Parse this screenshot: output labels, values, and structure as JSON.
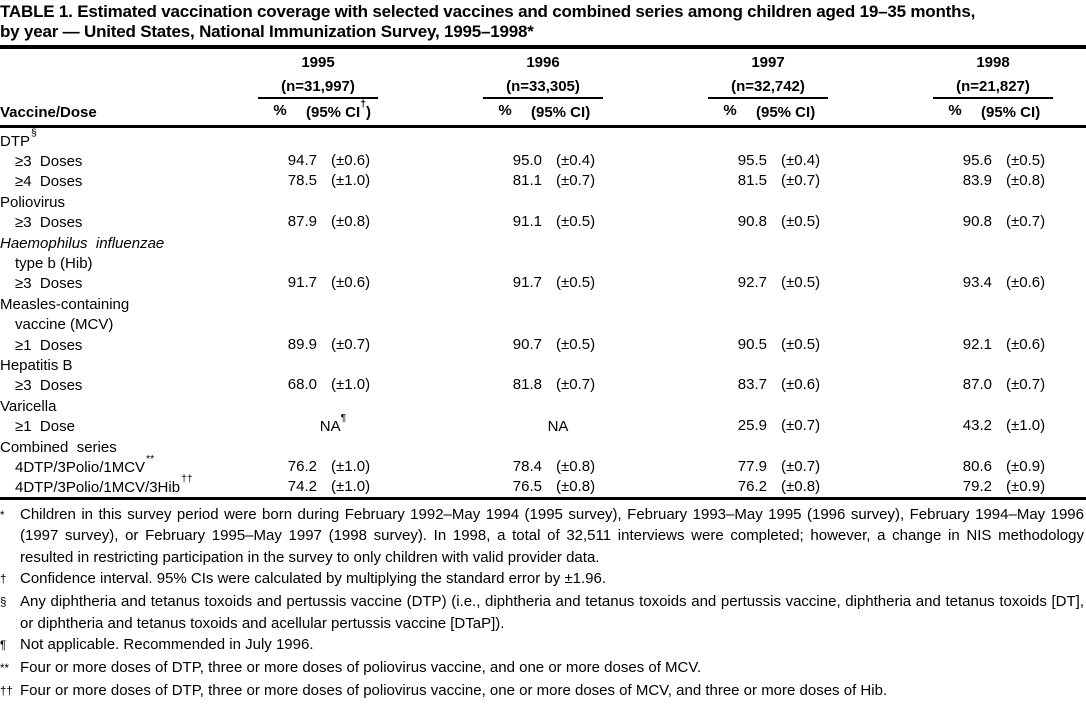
{
  "title": {
    "line1": "TABLE 1. Estimated vaccination coverage with selected vaccines and combined series among children aged 19–35 months,",
    "line2": "by year — United States, National Immunization Survey, 1995–1998*"
  },
  "table": {
    "row_header": "Vaccine/Dose",
    "year_groups": [
      {
        "year": "1995",
        "n": "(n=31,997)",
        "pct_label": "%",
        "ci_pre": "(95% CI",
        "ci_sup": "†",
        "ci_post": ")"
      },
      {
        "year": "1996",
        "n": "(n=33,305)",
        "pct_label": "%",
        "ci_pre": "(95% CI",
        "ci_sup": "",
        "ci_post": ")"
      },
      {
        "year": "1997",
        "n": "(n=32,742)",
        "pct_label": "%",
        "ci_pre": "(95% CI",
        "ci_sup": "",
        "ci_post": ")"
      },
      {
        "year": "1998",
        "n": "(n=21,827)",
        "pct_label": "%",
        "ci_pre": "(95% CI",
        "ci_sup": "",
        "ci_post": ")"
      }
    ],
    "rows": [
      {
        "label": "DTP",
        "sup": "§",
        "indent": 0,
        "italic": false,
        "cells": null
      },
      {
        "label": "≥3  Doses",
        "sup": "",
        "indent": 1,
        "italic": false,
        "cells": [
          {
            "pct": "94.7",
            "ci": "(±0.6)"
          },
          {
            "pct": "95.0",
            "ci": "(±0.4)"
          },
          {
            "pct": "95.5",
            "ci": "(±0.4)"
          },
          {
            "pct": "95.6",
            "ci": "(±0.5)"
          }
        ]
      },
      {
        "label": "≥4  Doses",
        "sup": "",
        "indent": 1,
        "italic": false,
        "cells": [
          {
            "pct": "78.5",
            "ci": "(±1.0)"
          },
          {
            "pct": "81.1",
            "ci": "(±0.7)"
          },
          {
            "pct": "81.5",
            "ci": "(±0.7)"
          },
          {
            "pct": "83.9",
            "ci": "(±0.8)"
          }
        ]
      },
      {
        "label": "Poliovirus",
        "sup": "",
        "indent": 0,
        "italic": false,
        "cells": null
      },
      {
        "label": "≥3  Doses",
        "sup": "",
        "indent": 1,
        "italic": false,
        "cells": [
          {
            "pct": "87.9",
            "ci": "(±0.8)"
          },
          {
            "pct": "91.1",
            "ci": "(±0.5)"
          },
          {
            "pct": "90.8",
            "ci": "(±0.5)"
          },
          {
            "pct": "90.8",
            "ci": "(±0.7)"
          }
        ]
      },
      {
        "label": "Haemophilus  influenzae",
        "sup": "",
        "indent": 0,
        "italic": true,
        "cells": null
      },
      {
        "label": "type b (Hib)",
        "sup": "",
        "indent": 1,
        "italic": false,
        "cells": null
      },
      {
        "label": "≥3  Doses",
        "sup": "",
        "indent": 1,
        "italic": false,
        "cells": [
          {
            "pct": "91.7",
            "ci": "(±0.6)"
          },
          {
            "pct": "91.7",
            "ci": "(±0.5)"
          },
          {
            "pct": "92.7",
            "ci": "(±0.5)"
          },
          {
            "pct": "93.4",
            "ci": "(±0.6)"
          }
        ]
      },
      {
        "label": "Measles-containing",
        "sup": "",
        "indent": 0,
        "italic": false,
        "cells": null
      },
      {
        "label": "vaccine (MCV)",
        "sup": "",
        "indent": 1,
        "italic": false,
        "cells": null
      },
      {
        "label": "≥1  Doses",
        "sup": "",
        "indent": 1,
        "italic": false,
        "cells": [
          {
            "pct": "89.9",
            "ci": "(±0.7)"
          },
          {
            "pct": "90.7",
            "ci": "(±0.5)"
          },
          {
            "pct": "90.5",
            "ci": "(±0.5)"
          },
          {
            "pct": "92.1",
            "ci": "(±0.6)"
          }
        ]
      },
      {
        "label": "Hepatitis B",
        "sup": "",
        "indent": 0,
        "italic": false,
        "cells": null
      },
      {
        "label": "≥3  Doses",
        "sup": "",
        "indent": 1,
        "italic": false,
        "cells": [
          {
            "pct": "68.0",
            "ci": "(±1.0)"
          },
          {
            "pct": "81.8",
            "ci": "(±0.7)"
          },
          {
            "pct": "83.7",
            "ci": "(±0.6)"
          },
          {
            "pct": "87.0",
            "ci": "(±0.7)"
          }
        ]
      },
      {
        "label": "Varicella",
        "sup": "",
        "indent": 0,
        "italic": false,
        "cells": null
      },
      {
        "label": "≥1  Dose",
        "sup": "",
        "indent": 1,
        "italic": false,
        "cells": [
          {
            "na": "NA",
            "sup": "¶"
          },
          {
            "na": "NA",
            "sup": ""
          },
          {
            "pct": "25.9",
            "ci": "(±0.7)"
          },
          {
            "pct": "43.2",
            "ci": "(±1.0)"
          }
        ]
      },
      {
        "label": "Combined  series",
        "sup": "",
        "indent": 0,
        "italic": false,
        "cells": null
      },
      {
        "label": "4DTP/3Polio/1MCV",
        "sup": "**",
        "indent": 1,
        "italic": false,
        "cells": [
          {
            "pct": "76.2",
            "ci": "(±1.0)"
          },
          {
            "pct": "78.4",
            "ci": "(±0.8)"
          },
          {
            "pct": "77.9",
            "ci": "(±0.7)"
          },
          {
            "pct": "80.6",
            "ci": "(±0.9)"
          }
        ]
      },
      {
        "label": "4DTP/3Polio/1MCV/3Hib",
        "sup": "††",
        "indent": 1,
        "italic": false,
        "cells": [
          {
            "pct": "74.2",
            "ci": "(±1.0)"
          },
          {
            "pct": "76.5",
            "ci": "(±0.8)"
          },
          {
            "pct": "76.2",
            "ci": "(±0.8)"
          },
          {
            "pct": "79.2",
            "ci": "(±0.9)"
          }
        ]
      }
    ]
  },
  "footnotes": [
    {
      "marker": "*",
      "text": "Children in this survey period were born during February 1992–May 1994 (1995 survey), February 1993–May 1995 (1996 survey), February 1994–May 1996 (1997 survey), or February 1995–May 1997 (1998 survey). In 1998, a total of 32,511 interviews were completed; however, a change in NIS methodology resulted in restricting participation in the survey to only children with valid provider data."
    },
    {
      "marker": "†",
      "text": "Confidence interval. 95% CIs were calculated by multiplying the standard error by ±1.96."
    },
    {
      "marker": "§",
      "text": "Any diphtheria and tetanus toxoids and pertussis vaccine (DTP) (i.e., diphtheria and tetanus toxoids and pertussis vaccine, diphtheria and tetanus toxoids [DT], or diphtheria and tetanus toxoids and acellular pertussis vaccine [DTaP])."
    },
    {
      "marker": "¶",
      "text": "Not applicable. Recommended in July 1996."
    },
    {
      "marker": "**",
      "text": "Four or more doses of DTP, three or more doses of poliovirus vaccine, and one or more doses of MCV."
    },
    {
      "marker": "††",
      "text": "Four or more doses of DTP, three or more doses of poliovirus vaccine, one or more doses of MCV, and three or more doses of Hib."
    }
  ]
}
